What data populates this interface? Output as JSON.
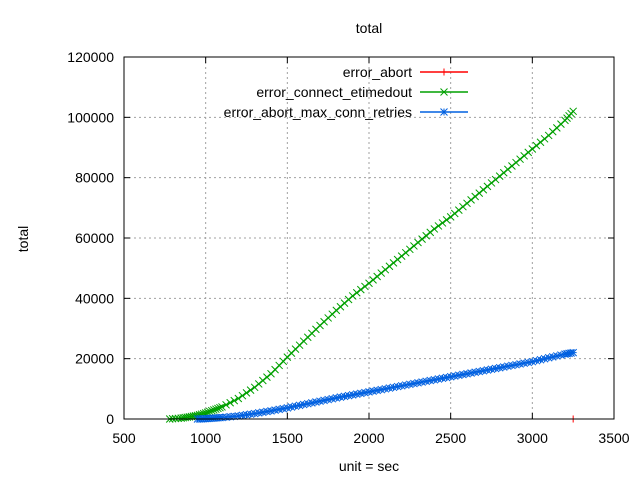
{
  "chart_data": {
    "type": "line",
    "title": "total",
    "xlabel": "unit = sec",
    "ylabel": "total",
    "xlim": [
      500,
      3500
    ],
    "ylim": [
      0,
      120000
    ],
    "x_ticks": [
      500,
      1000,
      1500,
      2000,
      2500,
      3000,
      3500
    ],
    "y_ticks": [
      0,
      20000,
      40000,
      60000,
      80000,
      100000,
      120000
    ],
    "grid": true,
    "legend_position": "top-right",
    "series": [
      {
        "name": "error_abort",
        "color": "#ff0000",
        "marker": "plus",
        "x": [
          3250
        ],
        "y": [
          0
        ]
      },
      {
        "name": "error_connect_etimedout",
        "color": "#00a000",
        "marker": "cross",
        "x": [
          780,
          850,
          900,
          950,
          1000,
          1050,
          1100,
          1200,
          1300,
          1400,
          1500,
          1600,
          1700,
          1800,
          1900,
          2000,
          2100,
          2200,
          2300,
          2400,
          2500,
          2600,
          2700,
          2800,
          2900,
          3000,
          3100,
          3200,
          3250
        ],
        "y": [
          0,
          300,
          700,
          1200,
          2000,
          3000,
          4000,
          6800,
          10500,
          15000,
          20500,
          25800,
          31000,
          36000,
          40800,
          45000,
          49500,
          54000,
          58500,
          63000,
          67000,
          71500,
          76000,
          80500,
          85000,
          89500,
          94000,
          99000,
          102000
        ]
      },
      {
        "name": "error_abort_max_conn_retries",
        "color": "#0060e0",
        "marker": "star",
        "x": [
          950,
          1000,
          1050,
          1100,
          1200,
          1300,
          1400,
          1500,
          1600,
          1700,
          1800,
          1900,
          2000,
          2100,
          2200,
          2300,
          2400,
          2500,
          2600,
          2700,
          2800,
          2900,
          3000,
          3100,
          3200,
          3250
        ],
        "y": [
          0,
          100,
          300,
          500,
          1000,
          1800,
          2700,
          3700,
          4800,
          5900,
          7000,
          8000,
          9000,
          10000,
          11000,
          12000,
          13000,
          14000,
          15000,
          16000,
          17000,
          18000,
          19000,
          20300,
          21500,
          22000
        ]
      }
    ]
  }
}
